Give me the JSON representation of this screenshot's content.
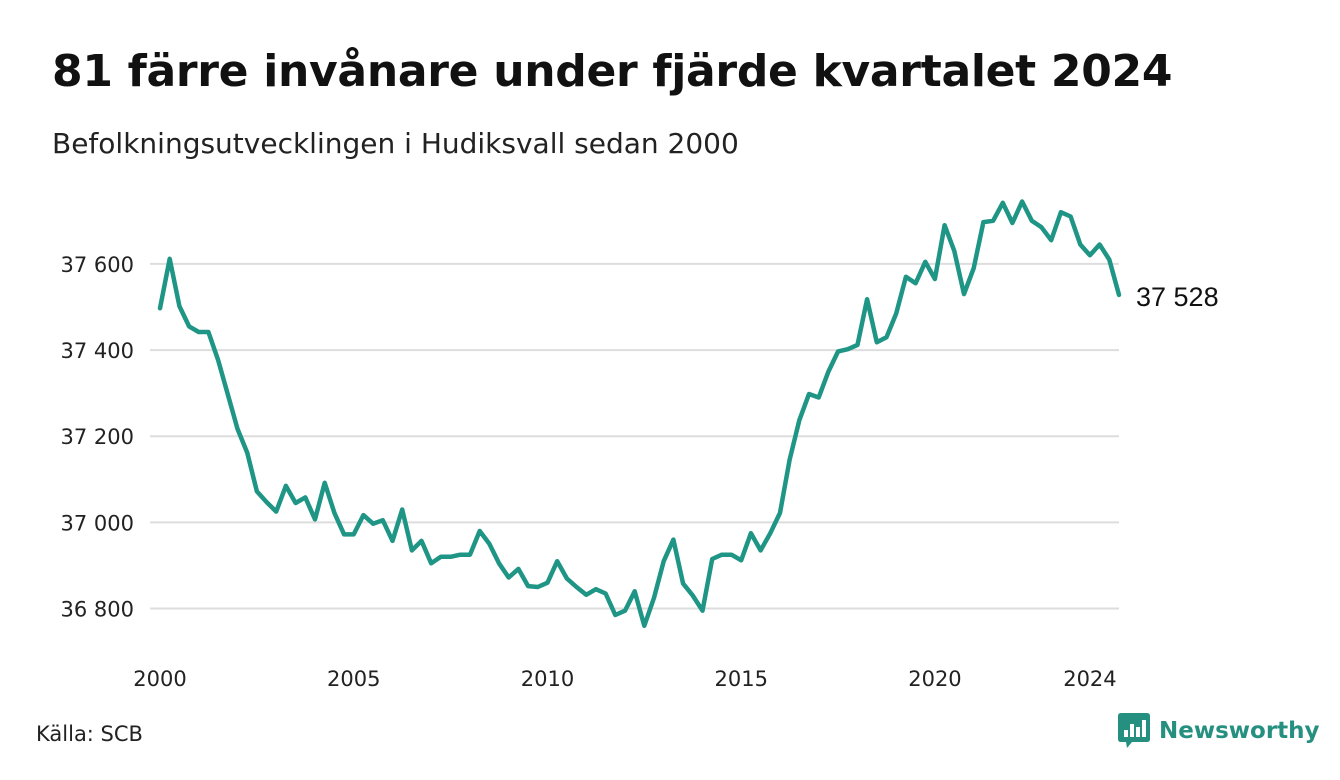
{
  "header": {
    "title": "81 färre invånare under fjärde kvartalet 2024",
    "subtitle": "Befolkningsutvecklingen i Hudiksvall sedan 2000"
  },
  "footer": {
    "source": "Källa: SCB",
    "brand": "Newsworthy"
  },
  "colors": {
    "line": "#1f9585",
    "grid": "#dddddd",
    "brand": "#25907f"
  },
  "icons": {
    "logo": "newsworthy-logo-icon"
  },
  "chart_data": {
    "type": "line",
    "title": "81 färre invånare under fjärde kvartalet 2024",
    "subtitle": "Befolkningsutvecklingen i Hudiksvall sedan 2000",
    "xlabel": "",
    "ylabel": "",
    "xlim": [
      2000.0,
      2025.0
    ],
    "ylim": [
      36720,
      37760
    ],
    "grid": true,
    "legend": "none",
    "x_ticks": [
      {
        "value": 2000,
        "label": "2000"
      },
      {
        "value": 2005,
        "label": "2005"
      },
      {
        "value": 2010,
        "label": "2010"
      },
      {
        "value": 2015,
        "label": "2015"
      },
      {
        "value": 2020,
        "label": "2020"
      },
      {
        "value": 2024,
        "label": "2024"
      }
    ],
    "y_ticks": [
      {
        "value": 36800,
        "label": "36 800"
      },
      {
        "value": 37000,
        "label": "37 000"
      },
      {
        "value": 37200,
        "label": "37 200"
      },
      {
        "value": 37400,
        "label": "37 400"
      },
      {
        "value": 37600,
        "label": "37 600"
      }
    ],
    "end_label": "37 528",
    "series": [
      {
        "x": [
          2000.0,
          2000.25,
          2000.5,
          2000.75,
          2001.0,
          2001.25,
          2001.5,
          2001.75,
          2002.0,
          2002.25,
          2002.5,
          2002.75,
          2003.0,
          2003.25,
          2003.5,
          2003.75,
          2004.0,
          2004.25,
          2004.5,
          2004.75,
          2005.0,
          2005.25,
          2005.5,
          2005.75,
          2006.0,
          2006.25,
          2006.5,
          2006.75,
          2007.0,
          2007.25,
          2007.5,
          2007.75,
          2008.0,
          2008.25,
          2008.5,
          2008.75,
          2009.0,
          2009.25,
          2009.5,
          2009.75,
          2010.0,
          2010.25,
          2010.5,
          2010.75,
          2011.0,
          2011.25,
          2011.5,
          2011.75,
          2012.0,
          2012.25,
          2012.5,
          2012.75,
          2013.0,
          2013.25,
          2013.5,
          2013.75,
          2014.0,
          2014.25,
          2014.5,
          2014.75,
          2015.0,
          2015.25,
          2015.5,
          2015.75,
          2016.0,
          2016.25,
          2016.5,
          2016.75,
          2017.0,
          2017.25,
          2017.5,
          2017.75,
          2018.0,
          2018.25,
          2018.5,
          2018.75,
          2019.0,
          2019.25,
          2019.5,
          2019.75,
          2020.0,
          2020.25,
          2020.5,
          2020.75,
          2021.0,
          2021.25,
          2021.5,
          2021.75,
          2022.0,
          2022.25,
          2022.5,
          2022.75,
          2023.0,
          2023.25,
          2023.5,
          2023.75,
          2024.0,
          2024.25,
          2024.5,
          2024.75
        ],
        "values": [
          37497,
          37612,
          37502,
          37455,
          37442,
          37442,
          37377,
          37297,
          37217,
          37162,
          37072,
          37047,
          37025,
          37085,
          37045,
          37058,
          37007,
          37092,
          37022,
          36972,
          36972,
          37017,
          36997,
          37005,
          36957,
          37030,
          36935,
          36957,
          36905,
          36920,
          36920,
          36925,
          36925,
          36980,
          36950,
          36905,
          36872,
          36892,
          36852,
          36850,
          36860,
          36910,
          36870,
          36850,
          36832,
          36845,
          36835,
          36785,
          36795,
          36840,
          36760,
          36825,
          36910,
          36960,
          36858,
          36830,
          36795,
          36915,
          36925,
          36925,
          36912,
          36975,
          36935,
          36975,
          37022,
          37145,
          37237,
          37298,
          37290,
          37350,
          37397,
          37402,
          37412,
          37518,
          37418,
          37430,
          37485,
          37570,
          37555,
          37605,
          37565,
          37690,
          37630,
          37530,
          37590,
          37697,
          37700,
          37742,
          37695,
          37745,
          37700,
          37685,
          37655,
          37720,
          37710,
          37645,
          37620,
          37645,
          37610,
          37528
        ]
      }
    ]
  }
}
